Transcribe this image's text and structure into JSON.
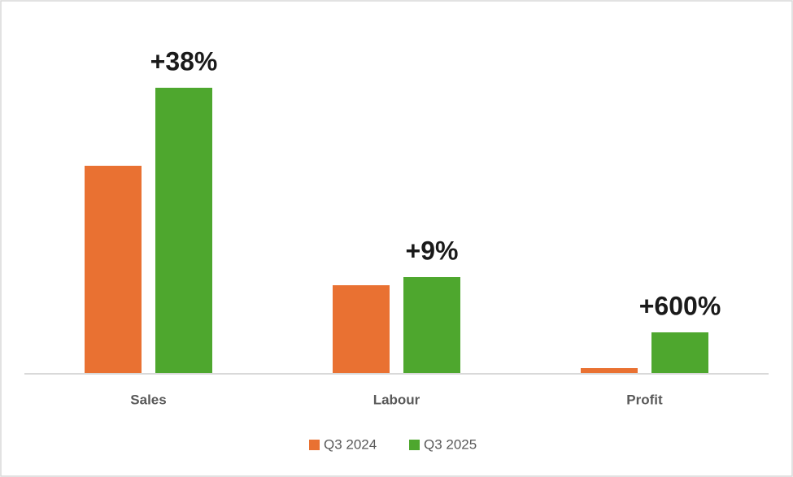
{
  "chart_data": {
    "type": "bar",
    "categories": [
      "Sales",
      "Labour",
      "Profit"
    ],
    "series": [
      {
        "name": "Q3 2024",
        "color": "#E97132",
        "values": [
          256,
          109,
          7
        ]
      },
      {
        "name": "Q3 2025",
        "color": "#4EA72E",
        "values": [
          352,
          119,
          51
        ]
      }
    ],
    "annotations": [
      "+38%",
      "+9%",
      "+600%"
    ],
    "ylim": [
      0,
      370
    ],
    "grid": false,
    "legend": "bottom"
  }
}
